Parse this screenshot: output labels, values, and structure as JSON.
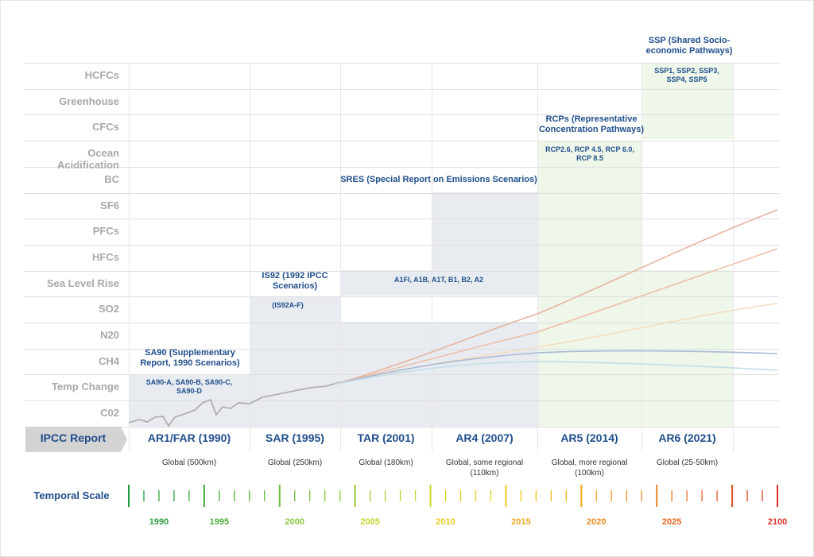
{
  "colors": {
    "label_gray": "#a8a8a8",
    "header_blue": "#1f4e8c",
    "fill_blue_gray": "#e8ecf1",
    "fill_green": "#eef7ea",
    "arrow_gray": "#cfcfcf"
  },
  "row_labels": [
    "HCFCs",
    "Greenhouse",
    "CFCs",
    "Ocean Acidification",
    "BC",
    "SF6",
    "PFCs",
    "HFCs",
    "Sea Level Rise",
    "SO2",
    "N20",
    "CH4",
    "Temp Change",
    "C02"
  ],
  "scenario_headers": {
    "ssp": "SSP (Shared Socio-economic Pathways)",
    "rcp": "RCPs (Representative Concentration Pathways)",
    "sres": "SRES (Special Report on Emissions Scenarios)",
    "is92": "IS92 (1992 IPCC Scenarios)",
    "sa90": "SA90 (Supplementary Report, 1990 Scenarios)"
  },
  "scenario_cells": {
    "ssp": "SSP1, SSP2, SSP3, SSP4, SSP5",
    "rcp": "RCP2.6, RCP 4.5, RCP 6.0, RCP 8.5",
    "sres": "A1FI, A1B, A1T, B1, B2, A2",
    "is92": "(IS92A-F)",
    "sa90": "SA90-A, SA90-B, SA90-C, SA90-D"
  },
  "ipcc_report_label": "IPCC Report",
  "reports": [
    "AR1/FAR (1990)",
    "SAR (1995)",
    "TAR (2001)",
    "AR4 (2007)",
    "AR5 (2014)",
    "AR6 (2021)"
  ],
  "resolutions": [
    "Global (500km)",
    "Global (250km)",
    "Global (180km)",
    "Global, some regional (110km)",
    "Global, more regional (100km)",
    "Global (25-50km)"
  ],
  "temporal_scale_label": "Temporal Scale",
  "timeline_years": [
    {
      "label": "1990",
      "color": "#2e9e3e"
    },
    {
      "label": "1995",
      "color": "#4fae3c"
    },
    {
      "label": "2000",
      "color": "#8cc63e"
    },
    {
      "label": "2005",
      "color": "#c4d42e"
    },
    {
      "label": "2010",
      "color": "#e6cc1f"
    },
    {
      "label": "2015",
      "color": "#f2a81e"
    },
    {
      "label": "2020",
      "color": "#ee8a22"
    },
    {
      "label": "2025",
      "color": "#e6641f"
    },
    {
      "label": "2100",
      "color": "#d9322a"
    }
  ]
}
